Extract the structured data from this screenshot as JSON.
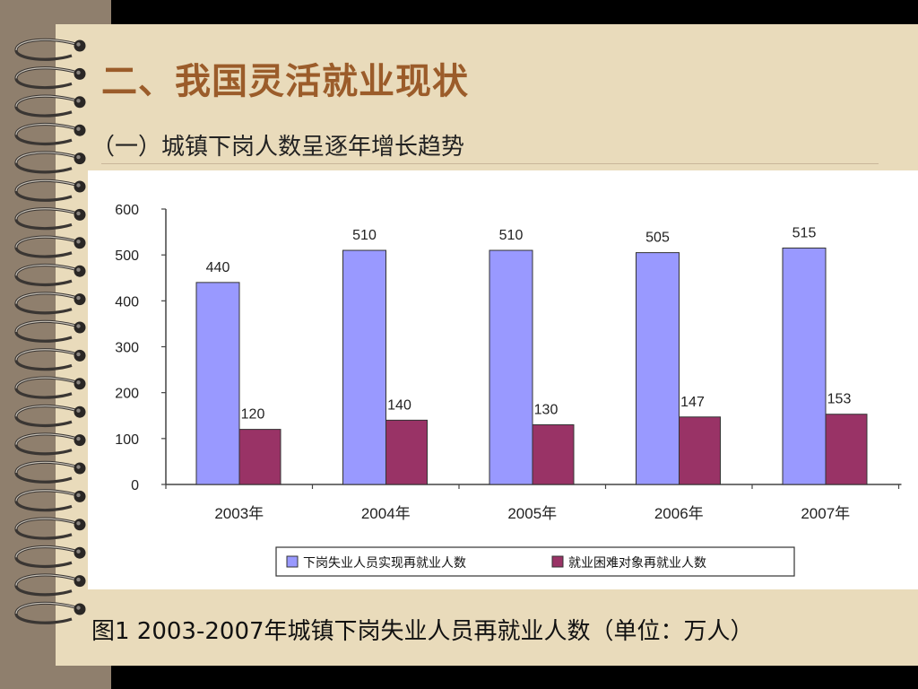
{
  "slide": {
    "title": "二、我国灵活就业现状",
    "subtitle": "（一）城镇下岗人数呈逐年增长趋势",
    "caption": "图1 2003-2007年城镇下岗失业人员再就业人数（单位：万人）"
  },
  "colors": {
    "background": "#000000",
    "page": "#e9dbbb",
    "binding_band": "#8f7f6d",
    "title": "#9b5c2a",
    "series_1": "#9999ff",
    "series_2": "#993366"
  },
  "icons": [
    "spiral-binding-icon"
  ],
  "chart_data": {
    "type": "bar",
    "title": "",
    "xlabel": "",
    "ylabel": "",
    "categories": [
      "2003年",
      "2004年",
      "2005年",
      "2006年",
      "2007年"
    ],
    "series": [
      {
        "name": "下岗失业人员实现再就业人数",
        "values": [
          440,
          510,
          510,
          505,
          515
        ],
        "labels": [
          "440",
          "510",
          "510",
          "505",
          "515"
        ],
        "color": "#9999ff"
      },
      {
        "name": "就业困难对象再就业人数",
        "values": [
          120,
          140,
          130,
          147,
          153
        ],
        "labels": [
          "120",
          "140",
          "130",
          "147",
          "153"
        ],
        "color": "#993366"
      }
    ],
    "ylim": [
      0,
      600
    ],
    "yticks": [
      "0",
      "100",
      "200",
      "300",
      "400",
      "500",
      "600"
    ],
    "grid": false,
    "legend": "bottom"
  }
}
